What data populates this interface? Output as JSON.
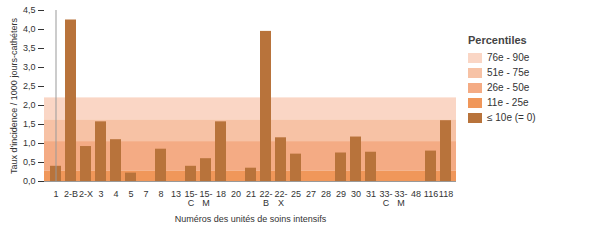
{
  "chart_data": {
    "type": "bar",
    "x_label": "Numéros des unités de soins intensifs",
    "y_label": "Taux d'incidence / 1000 jours-cathéters",
    "categories": [
      "1",
      "2-B",
      "2-X",
      "3",
      "4",
      "5",
      "7",
      "8",
      "13",
      "15-\nC",
      "15-\nM",
      "18",
      "20",
      "21",
      "22-\nB",
      "22-\nX",
      "25",
      "27",
      "28",
      "29",
      "30",
      "31",
      "33-\nC",
      "33-\nM",
      "48",
      "116",
      "118"
    ],
    "values": [
      0.4,
      4.25,
      0.92,
      1.57,
      1.1,
      0.22,
      0,
      0.85,
      0,
      0.4,
      0.6,
      1.57,
      0,
      0.35,
      3.95,
      1.15,
      0.72,
      0,
      0,
      0.75,
      1.17,
      0.77,
      0,
      0,
      0,
      0.8,
      1.6
    ],
    "color": "#b8733b",
    "ylim": [
      0,
      4.5
    ],
    "yticks": [
      {
        "value": 0,
        "label": "0,0"
      },
      {
        "value": 0.5,
        "label": "0,5"
      },
      {
        "value": 1,
        "label": "1,0"
      },
      {
        "value": 1.5,
        "label": "1,5"
      },
      {
        "value": 2,
        "label": "2,0"
      },
      {
        "value": 2.5,
        "label": "2,5"
      },
      {
        "value": 3,
        "label": "3,0"
      },
      {
        "value": 3.5,
        "label": "3,5"
      },
      {
        "value": 4,
        "label": "4,0"
      },
      {
        "value": 4.5,
        "label": "4,5"
      }
    ],
    "grid": false,
    "legend": "right",
    "legend_title": "Percentiles",
    "bands": [
      {
        "name": "76e - 90e",
        "from": 1.62,
        "to": 2.2,
        "color": "#fad6c5"
      },
      {
        "name": "51e - 75e",
        "from": 1.05,
        "to": 1.62,
        "color": "#f7c2a5"
      },
      {
        "name": "26e - 50e",
        "from": 0.27,
        "to": 1.05,
        "color": "#f4ab84"
      },
      {
        "name": "11e - 25e",
        "from": 0,
        "to": 0.27,
        "color": "#f0975a"
      },
      {
        "name": "≤ 10e (= 0)",
        "from": 0,
        "to": 0,
        "color": "#b8733b"
      }
    ]
  }
}
